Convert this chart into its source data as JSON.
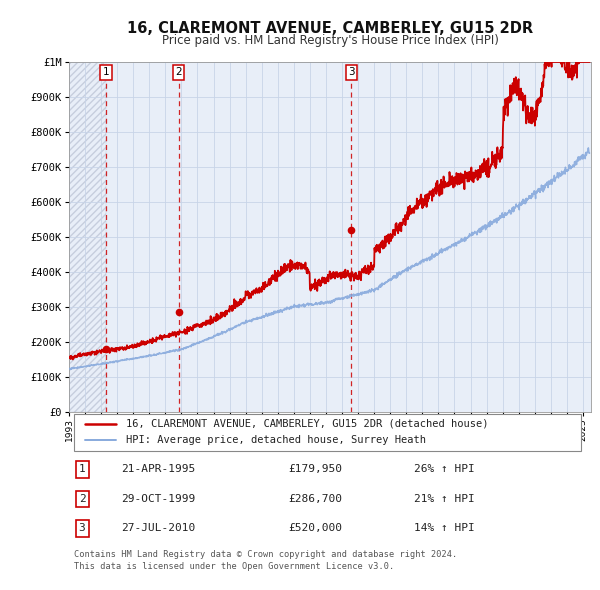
{
  "title": "16, CLAREMONT AVENUE, CAMBERLEY, GU15 2DR",
  "subtitle": "Price paid vs. HM Land Registry's House Price Index (HPI)",
  "bg_color": "#e8eef8",
  "grid_color": "#c8d4e8",
  "ylim": [
    0,
    1000000
  ],
  "yticks": [
    0,
    100000,
    200000,
    300000,
    400000,
    500000,
    600000,
    700000,
    800000,
    900000,
    1000000
  ],
  "ytick_labels": [
    "£0",
    "£100K",
    "£200K",
    "£300K",
    "£400K",
    "£500K",
    "£600K",
    "£700K",
    "£800K",
    "£900K",
    "£1M"
  ],
  "xlim_start": 1993.0,
  "xlim_end": 2025.5,
  "xtick_years": [
    1993,
    1994,
    1995,
    1996,
    1997,
    1998,
    1999,
    2000,
    2001,
    2002,
    2003,
    2004,
    2005,
    2006,
    2007,
    2008,
    2009,
    2010,
    2011,
    2012,
    2013,
    2014,
    2015,
    2016,
    2017,
    2018,
    2019,
    2020,
    2021,
    2022,
    2023,
    2024,
    2025
  ],
  "red_line_color": "#cc0000",
  "blue_line_color": "#88aadd",
  "sale_marker_color": "#cc0000",
  "vline_color": "#cc0000",
  "sale_points": [
    {
      "date_decimal": 1995.31,
      "price": 179950,
      "label": "1"
    },
    {
      "date_decimal": 1999.83,
      "price": 286700,
      "label": "2"
    },
    {
      "date_decimal": 2010.57,
      "price": 520000,
      "label": "3"
    }
  ],
  "legend_entries": [
    {
      "label": "16, CLAREMONT AVENUE, CAMBERLEY, GU15 2DR (detached house)",
      "color": "#cc0000",
      "lw": 1.8
    },
    {
      "label": "HPI: Average price, detached house, Surrey Heath",
      "color": "#88aadd",
      "lw": 1.4
    }
  ],
  "table_rows": [
    {
      "num": "1",
      "date": "21-APR-1995",
      "price": "£179,950",
      "hpi": "26% ↑ HPI"
    },
    {
      "num": "2",
      "date": "29-OCT-1999",
      "price": "£286,700",
      "hpi": "21% ↑ HPI"
    },
    {
      "num": "3",
      "date": "27-JUL-2010",
      "price": "£520,000",
      "hpi": "14% ↑ HPI"
    }
  ],
  "footnote": "Contains HM Land Registry data © Crown copyright and database right 2024.\nThis data is licensed under the Open Government Licence v3.0."
}
